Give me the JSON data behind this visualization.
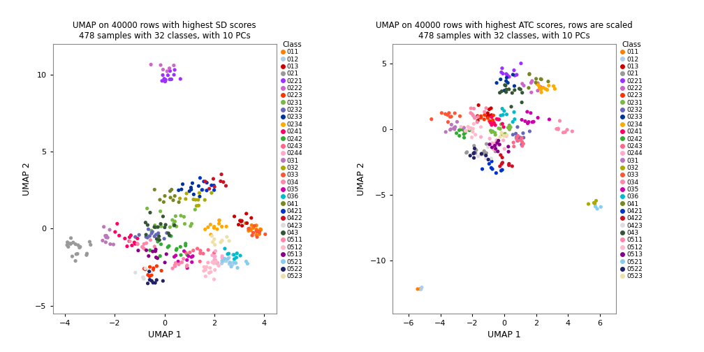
{
  "title1": "UMAP on 40000 rows with highest SD scores\n478 samples with 32 classes, with 10 PCs",
  "title2": "UMAP on 40000 rows with highest ATC scores, rows are scaled\n478 samples with 32 classes, with 10 PCs",
  "xlabel": "UMAP 1",
  "ylabel": "UMAP 2",
  "classes": [
    "011",
    "012",
    "013",
    "021",
    "0221",
    "0222",
    "0223",
    "0231",
    "0232",
    "0233",
    "0234",
    "0241",
    "0242",
    "0243",
    "0244",
    "031",
    "032",
    "033",
    "034",
    "035",
    "036",
    "041",
    "0421",
    "0422",
    "0423",
    "043",
    "0511",
    "0512",
    "0513",
    "0521",
    "0522",
    "0523"
  ],
  "colors": [
    "#F8766D",
    "#C3BC3F",
    "#D39200",
    "#93AA00",
    "#00BA38",
    "#00C19F",
    "#00B9E3",
    "#619CFF",
    "#DB72FB",
    "#FF61C3",
    "#E76BF3",
    "#B983FF",
    "#9590FF",
    "#00BFC4",
    "#00BA38",
    "#00C094",
    "#53B400",
    "#A58AFF",
    "#FB61D7",
    "#F8766D",
    "#00B6EB",
    "#06A4FF",
    "#DF70F8",
    "#C49A00",
    "#53B400",
    "#00BE67",
    "#00C0AF",
    "#619CFF",
    "#E5A429",
    "#B983FF",
    "#F564E3",
    "#C77CFF"
  ],
  "xlim1": [
    -4.5,
    4.5
  ],
  "ylim1": [
    -5.5,
    12.0
  ],
  "xlim2": [
    -7.0,
    7.0
  ],
  "ylim2": [
    -14.0,
    6.5
  ],
  "xticks1": [
    -4,
    -2,
    0,
    2,
    4
  ],
  "yticks1": [
    -5,
    0,
    5,
    10
  ],
  "xticks2": [
    -6,
    -4,
    -2,
    0,
    2,
    4,
    6
  ],
  "yticks2": [
    -10,
    -5,
    0,
    5
  ],
  "bg_color": "#FFFFFF",
  "panel_bg": "#FFFFFF",
  "grid_color": "#FFFFFF"
}
